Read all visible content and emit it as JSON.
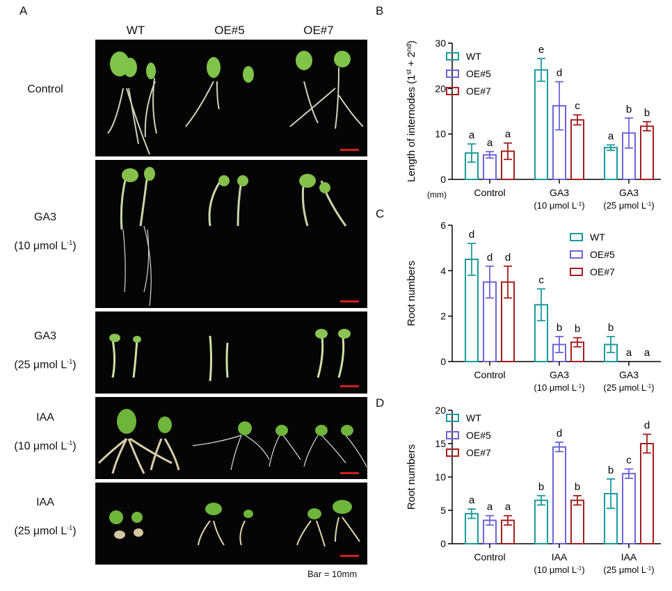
{
  "panels": {
    "a": "A",
    "b": "B",
    "c": "C",
    "d": "D"
  },
  "photos": {
    "columns": [
      "WT",
      "OE#5",
      "OE#7"
    ],
    "rows": [
      {
        "line1": "Control",
        "line2": ""
      },
      {
        "line1": "GA3",
        "line2": "(10 μmol L",
        "sup": "-1",
        "close": ")"
      },
      {
        "line1": "GA3",
        "line2": "(25 μmol L",
        "sup": "-1",
        "close": ")"
      },
      {
        "line1": "IAA",
        "line2": "(10 μmol L",
        "sup": "-1",
        "close": ")"
      },
      {
        "line1": "IAA",
        "line2": "(25 μmol L",
        "sup": "-1",
        "close": ")"
      }
    ],
    "scale_note": "Bar = 10mm",
    "scale_color": "#d21f1f"
  },
  "colors": {
    "WT": "#1a9a9a",
    "OE#5": "#6b63d6",
    "OE#7": "#a31e1e"
  },
  "chart_data": [
    {
      "type": "bar",
      "panel": "B",
      "ylabel": "Length of internodes (1st + 2nd)",
      "unit": "(mm)",
      "ylim": [
        0,
        30
      ],
      "yticks": [
        0,
        10,
        20,
        30
      ],
      "legend": "top-left",
      "categories": [
        {
          "name": "Control",
          "sub": ""
        },
        {
          "name": "GA3",
          "sub": "(10 μmol L-1)"
        },
        {
          "name": "GA3",
          "sub": "(25 μmol L-1)"
        }
      ],
      "series": [
        {
          "name": "WT",
          "values": [
            5.8,
            24.1,
            7.0
          ],
          "errors": [
            2.0,
            2.5,
            0.6
          ],
          "letters": [
            "a",
            "e",
            "a"
          ]
        },
        {
          "name": "OE#5",
          "values": [
            5.4,
            16.2,
            10.2
          ],
          "errors": [
            0.7,
            5.3,
            3.3
          ],
          "letters": [
            "a",
            "d",
            "b"
          ]
        },
        {
          "name": "OE#7",
          "values": [
            6.2,
            13.1,
            11.7
          ],
          "errors": [
            1.8,
            1.1,
            1.0
          ],
          "letters": [
            "a",
            "c",
            "b"
          ]
        }
      ]
    },
    {
      "type": "bar",
      "panel": "C",
      "ylabel": "Root numbers",
      "ylim": [
        0,
        6
      ],
      "yticks": [
        0,
        2,
        4,
        6
      ],
      "legend": "top-right",
      "categories": [
        {
          "name": "Control",
          "sub": ""
        },
        {
          "name": "GA3",
          "sub": "(10 μmol L-1)"
        },
        {
          "name": "GA3",
          "sub": "(25 μmol L-1)"
        }
      ],
      "series": [
        {
          "name": "WT",
          "values": [
            4.5,
            2.5,
            0.75
          ],
          "errors": [
            0.7,
            0.7,
            0.35
          ],
          "letters": [
            "d",
            "c",
            "b"
          ]
        },
        {
          "name": "OE#5",
          "values": [
            3.5,
            0.75,
            0
          ],
          "errors": [
            0.7,
            0.35,
            0
          ],
          "letters": [
            "d",
            "b",
            "a"
          ]
        },
        {
          "name": "OE#7",
          "values": [
            3.5,
            0.85,
            0
          ],
          "errors": [
            0.7,
            0.2,
            0
          ],
          "letters": [
            "d",
            "b",
            "a"
          ]
        }
      ]
    },
    {
      "type": "bar",
      "panel": "D",
      "ylabel": "Root numbers",
      "ylim": [
        0,
        20
      ],
      "yticks": [
        0,
        5,
        10,
        15,
        20
      ],
      "legend": "top-left",
      "categories": [
        {
          "name": "Control",
          "sub": ""
        },
        {
          "name": "IAA",
          "sub": "(10 μmol L-1)"
        },
        {
          "name": "IAA",
          "sub": "(25 μmol L-1)"
        }
      ],
      "series": [
        {
          "name": "WT",
          "values": [
            4.5,
            6.5,
            7.5
          ],
          "errors": [
            0.7,
            0.7,
            2.2
          ],
          "letters": [
            "a",
            "b",
            "b"
          ]
        },
        {
          "name": "OE#5",
          "values": [
            3.5,
            14.5,
            10.5
          ],
          "errors": [
            0.7,
            0.7,
            0.7
          ],
          "letters": [
            "a",
            "d",
            "c"
          ]
        },
        {
          "name": "OE#7",
          "values": [
            3.5,
            6.5,
            15.0
          ],
          "errors": [
            0.7,
            0.7,
            1.4
          ],
          "letters": [
            "a",
            "b",
            "d"
          ]
        }
      ]
    }
  ]
}
